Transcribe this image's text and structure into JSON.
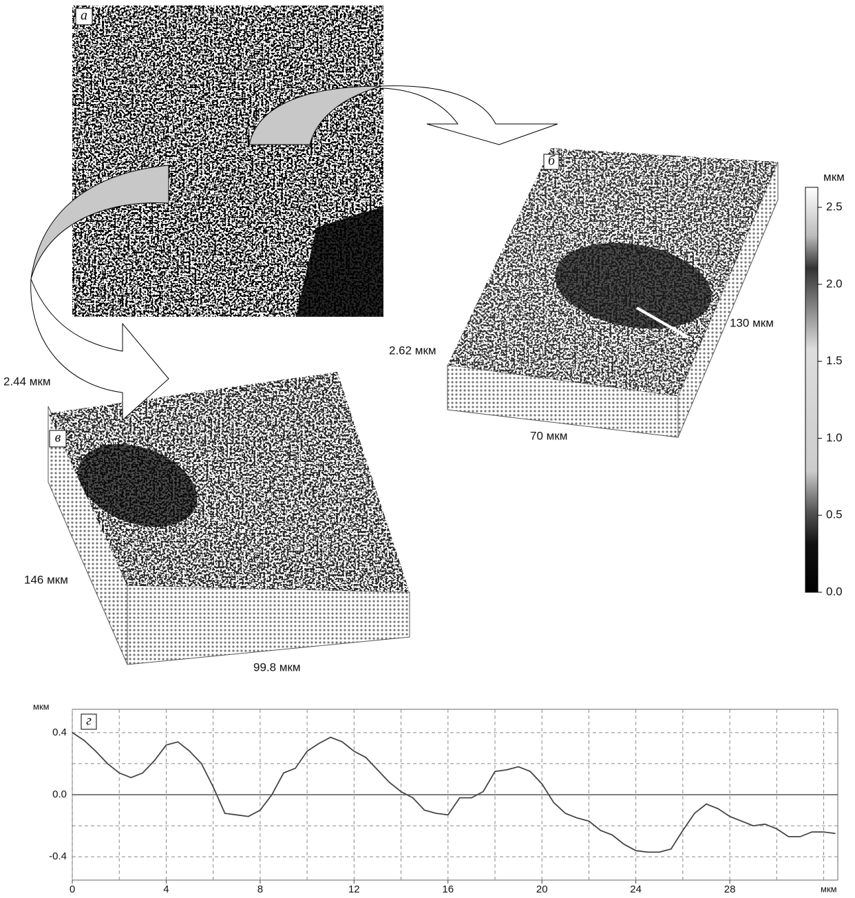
{
  "panel_labels": [
    "а",
    "б",
    "в"
  ],
  "panel_b": {
    "height": "2.62 мкм",
    "length": "130 мкм",
    "width": "70 мкм"
  },
  "panel_c": {
    "height": "2.44 мкм",
    "length": "146 мкм",
    "width": "99.8 мкм"
  },
  "colorbar": {
    "unit": "мкм",
    "lim": [
      0,
      2.63
    ],
    "ticks": [
      {
        "value": 0,
        "label": "0.0"
      },
      0.5,
      {
        "value": 1,
        "label": "1.0"
      },
      1.5,
      {
        "value": 2,
        "label": "2.0"
      },
      2.5
    ]
  },
  "chart_data": {
    "type": "line",
    "panel_label": "г",
    "y_unit": "мкм",
    "x_unit": "мкм",
    "x": [
      0,
      0.5,
      1,
      1.5,
      2,
      2.5,
      3,
      3.5,
      4,
      4.5,
      5,
      5.5,
      6,
      6.5,
      7,
      7.5,
      8,
      8.5,
      9,
      9.5,
      10,
      10.5,
      11,
      11.5,
      12,
      12.5,
      13,
      13.5,
      14,
      14.5,
      15,
      15.5,
      16,
      16.5,
      17,
      17.5,
      18,
      18.5,
      19,
      19.5,
      20,
      20.5,
      21,
      21.5,
      22,
      22.5,
      23,
      23.5,
      24,
      24.5,
      25,
      25.5,
      26,
      26.5,
      27,
      27.5,
      28,
      28.5,
      29,
      29.5,
      30,
      30.5,
      31,
      31.5,
      32,
      32.5
    ],
    "series": [
      {
        "color": "#444444",
        "values": [
          0.4,
          0.35,
          0.28,
          0.2,
          0.14,
          0.11,
          0.14,
          0.22,
          0.32,
          0.34,
          0.28,
          0.2,
          0.05,
          -0.12,
          -0.13,
          -0.14,
          -0.1,
          0.0,
          0.14,
          0.17,
          0.28,
          0.33,
          0.37,
          0.34,
          0.28,
          0.24,
          0.16,
          0.08,
          0.02,
          -0.02,
          -0.1,
          -0.12,
          -0.13,
          -0.02,
          -0.02,
          0.02,
          0.15,
          0.16,
          0.18,
          0.15,
          0.07,
          -0.05,
          -0.12,
          -0.15,
          -0.17,
          -0.23,
          -0.26,
          -0.32,
          -0.36,
          -0.37,
          -0.37,
          -0.35,
          -0.23,
          -0.12,
          -0.06,
          -0.09,
          -0.14,
          -0.17,
          -0.2,
          -0.19,
          -0.22,
          -0.27,
          -0.27,
          -0.24,
          -0.24,
          -0.25
        ]
      }
    ],
    "xlim": [
      0,
      32.6
    ],
    "ylim": [
      -0.55,
      0.55
    ],
    "xticks": [
      0,
      4,
      8,
      12,
      16,
      20,
      24,
      28
    ],
    "yticks": [
      -0.4,
      {
        "value": 0,
        "label": "0.0"
      },
      0.4
    ],
    "grid": true
  }
}
